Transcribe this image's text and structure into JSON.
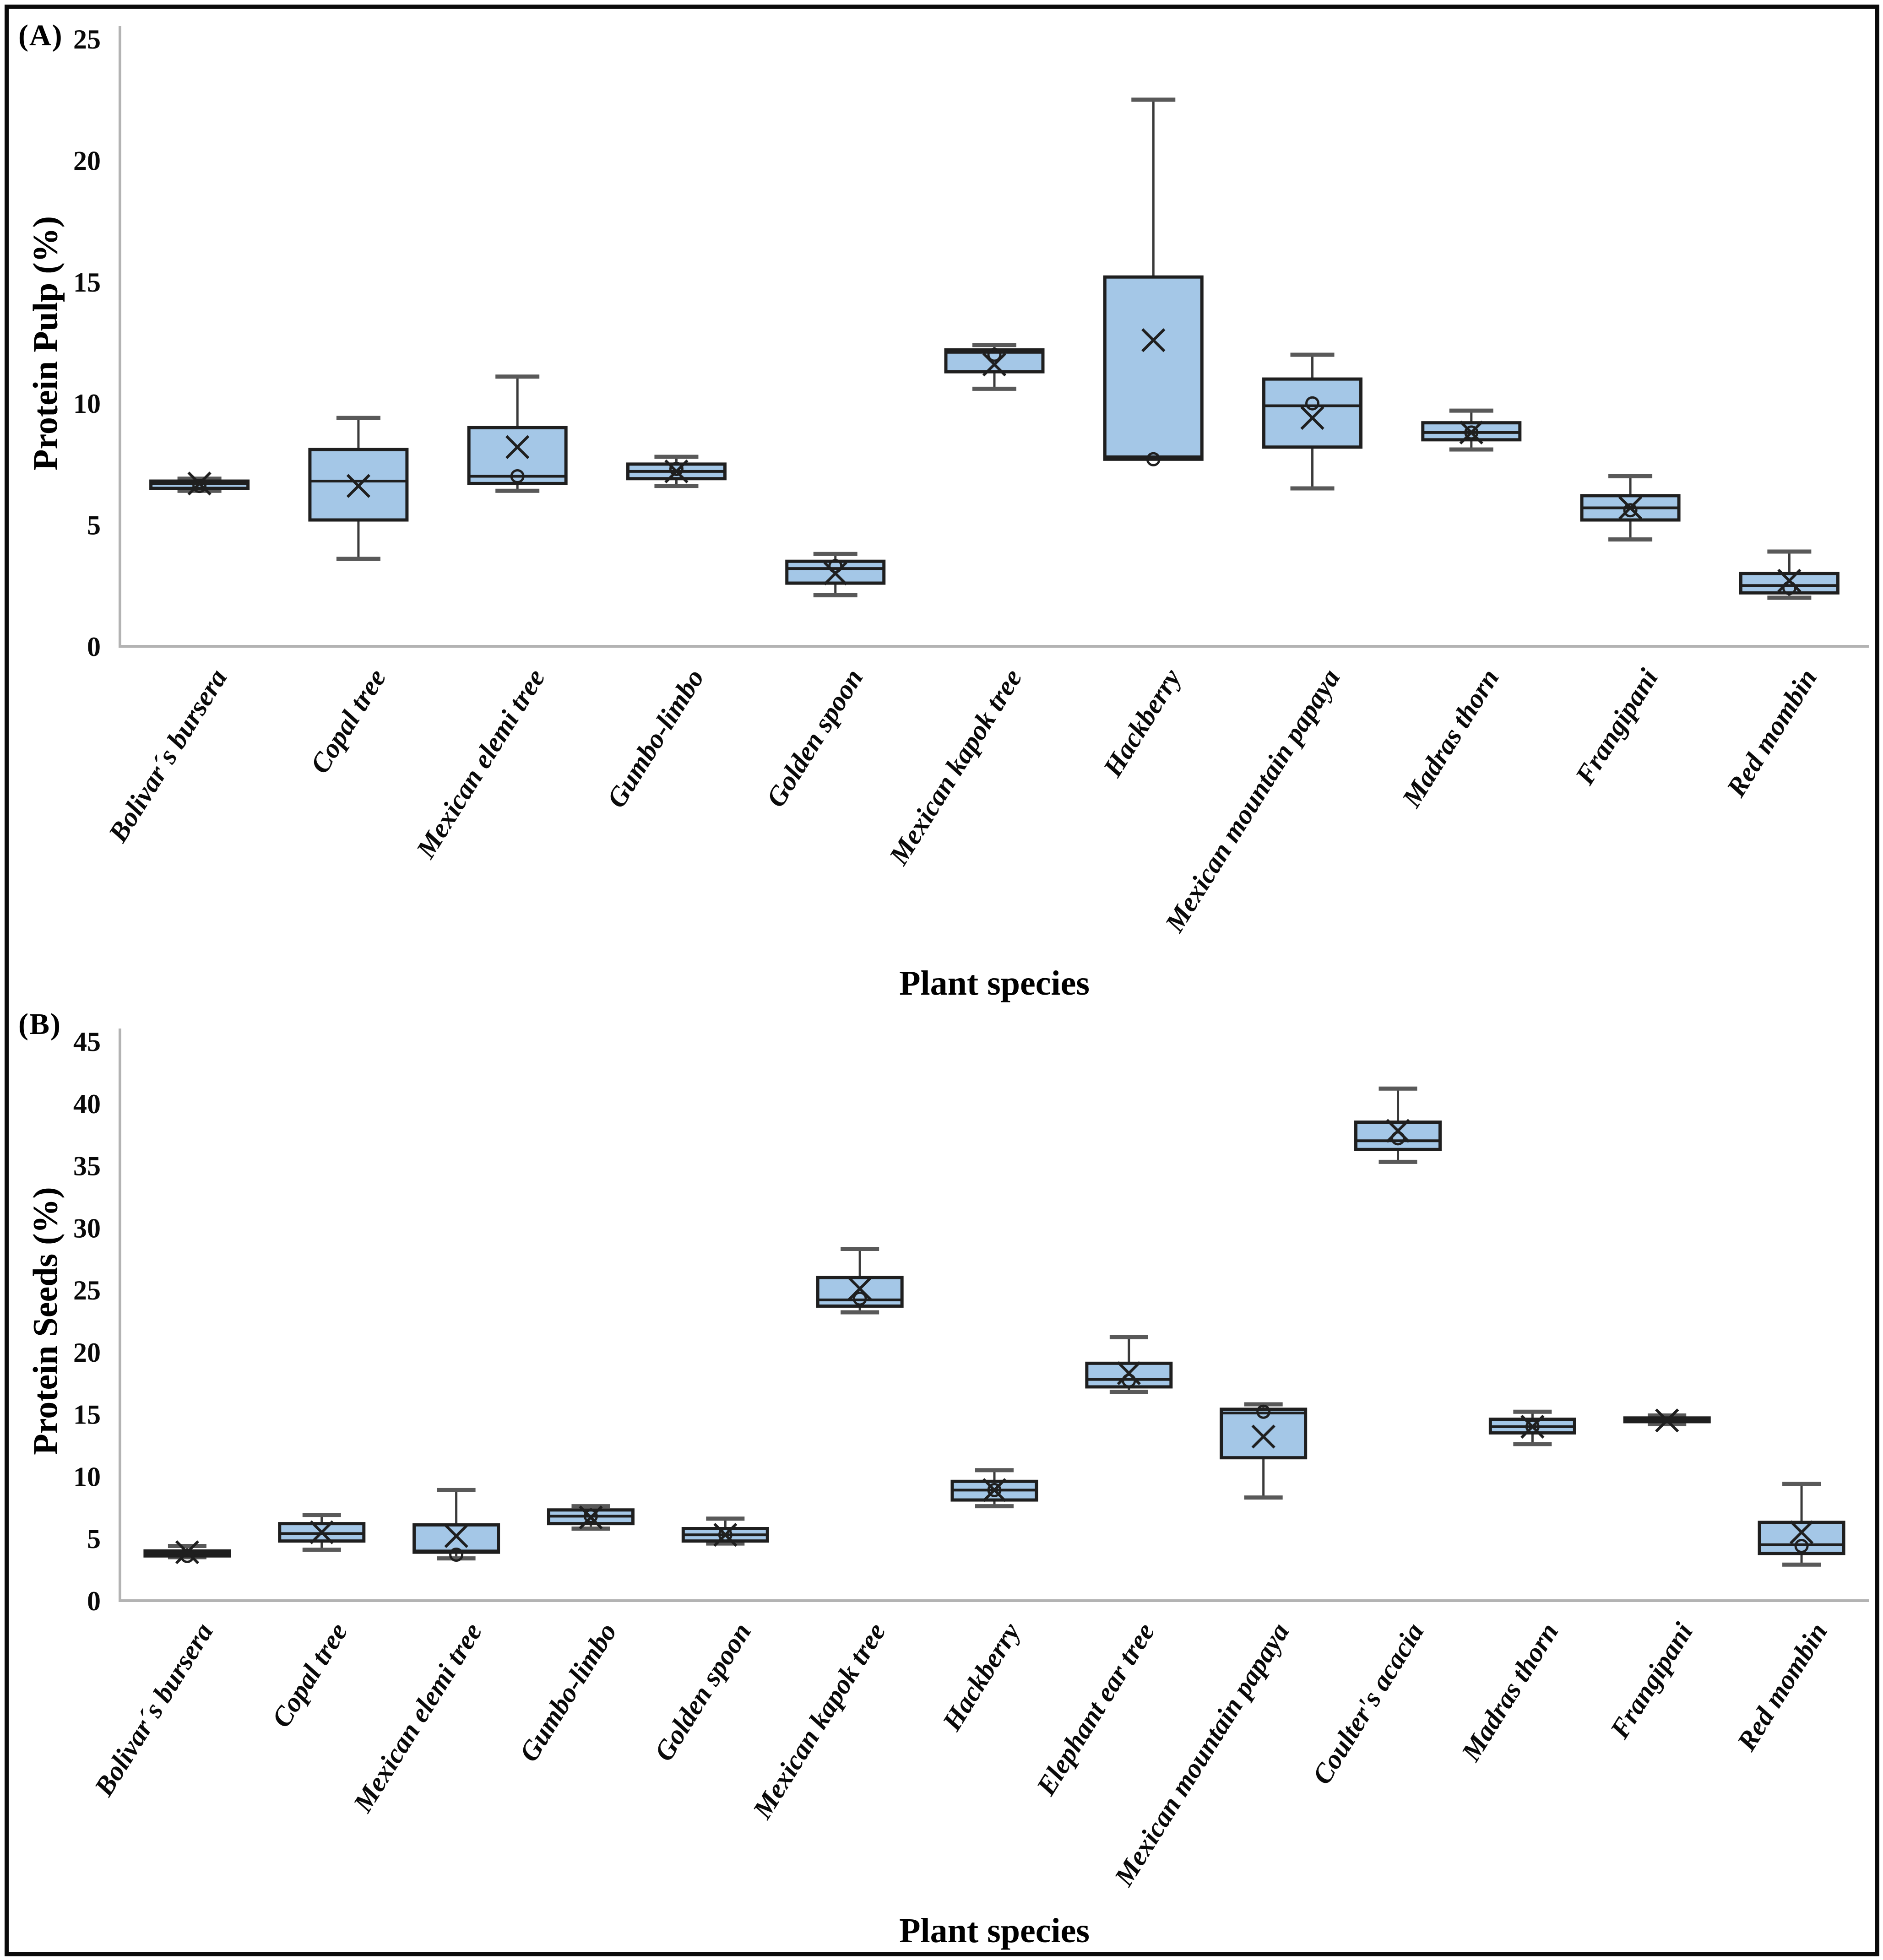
{
  "style": {
    "box_fill": "#a4c7e7",
    "box_stroke": "#1f1f1f",
    "whisker_color": "#3a3a3a",
    "cap_color": "#595959",
    "axis_color": "#b3b3b3",
    "text_color": "#0a0a0a"
  },
  "chart_data": [
    {
      "type": "box",
      "panel_label": "(A)",
      "xlabel": "Plant species",
      "ylabel": "Protein Pulp (%)",
      "ylim": [
        0,
        25
      ],
      "yticks": [
        0,
        5,
        10,
        15,
        20,
        25
      ],
      "grid": false,
      "legend": "none",
      "categories": [
        "Bolivar´s bursera",
        "Copal tree",
        "Mexican elemi tree",
        "Gumbo-limbo",
        "Golden spoon",
        "Mexican kapok tree",
        "Hackberry",
        "Mexican mountain papaya",
        "Madras thorn",
        "Frangipani",
        "Red mombin"
      ],
      "series": [
        {
          "name": "Protein Pulp",
          "boxes": [
            {
              "category": "Bolivar´s bursera",
              "low": 6.4,
              "q1": 6.5,
              "median": 6.7,
              "q3": 6.8,
              "high": 6.9,
              "mean": 6.7,
              "point": 6.6
            },
            {
              "category": "Copal tree",
              "low": 3.6,
              "q1": 5.2,
              "median": 6.8,
              "q3": 8.1,
              "high": 9.4,
              "mean": 6.6
            },
            {
              "category": "Mexican elemi tree",
              "low": 6.4,
              "q1": 6.7,
              "median": 7.0,
              "q3": 9.0,
              "high": 11.1,
              "mean": 8.2,
              "point": 7.0
            },
            {
              "category": "Gumbo-limbo",
              "low": 6.6,
              "q1": 6.9,
              "median": 7.2,
              "q3": 7.5,
              "high": 7.8,
              "mean": 7.2,
              "point": 7.3
            },
            {
              "category": "Golden spoon",
              "low": 2.1,
              "q1": 2.6,
              "median": 3.2,
              "q3": 3.5,
              "high": 3.8,
              "mean": 3.0,
              "point": 3.3
            },
            {
              "category": "Mexican kapok tree",
              "low": 10.6,
              "q1": 11.3,
              "median": 12.1,
              "q3": 12.2,
              "high": 12.4,
              "mean": 11.6,
              "point": 12.0
            },
            {
              "category": "Hackberry",
              "low": 7.7,
              "q1": 7.7,
              "median": 7.8,
              "q3": 15.2,
              "high": 22.5,
              "mean": 12.6,
              "point": 7.7
            },
            {
              "category": "Mexican mountain papaya",
              "low": 6.5,
              "q1": 8.2,
              "median": 9.9,
              "q3": 11.0,
              "high": 12.0,
              "mean": 9.4,
              "point": 10.0
            },
            {
              "category": "Madras thorn",
              "low": 8.1,
              "q1": 8.5,
              "median": 8.8,
              "q3": 9.2,
              "high": 9.7,
              "mean": 8.8,
              "point": 8.8
            },
            {
              "category": "Frangipani",
              "low": 4.4,
              "q1": 5.2,
              "median": 5.7,
              "q3": 6.2,
              "high": 7.0,
              "mean": 5.7,
              "point": 5.6
            },
            {
              "category": "Red mombin",
              "low": 2.0,
              "q1": 2.2,
              "median": 2.5,
              "q3": 3.0,
              "high": 3.9,
              "mean": 2.7,
              "point": 2.4
            }
          ]
        }
      ]
    },
    {
      "type": "box",
      "panel_label": "(B)",
      "xlabel": "Plant species",
      "ylabel": "Protein Seeds (%)",
      "ylim": [
        0,
        45
      ],
      "yticks": [
        0,
        5,
        10,
        15,
        20,
        25,
        30,
        35,
        40,
        45
      ],
      "grid": false,
      "legend": "none",
      "categories": [
        "Bolivar´s bursera",
        "Copal tree",
        "Mexican elemi tree",
        "Gumbo-limbo",
        "Golden spoon",
        "Mexican kapok tree",
        "Hackberry",
        "Elephant ear tree",
        "Mexican mountain papaya",
        "Coulter's acacia",
        "Madras thorn",
        "Frangipani",
        "Red mombin"
      ],
      "series": [
        {
          "name": "Protein Seeds",
          "boxes": [
            {
              "category": "Bolivar´s bursera",
              "low": 3.5,
              "q1": 3.6,
              "median": 3.8,
              "q3": 4.0,
              "high": 4.4,
              "mean": 3.9,
              "point": 3.6
            },
            {
              "category": "Copal tree",
              "low": 4.1,
              "q1": 4.8,
              "median": 5.4,
              "q3": 6.2,
              "high": 6.9,
              "mean": 5.5
            },
            {
              "category": "Mexican elemi tree",
              "low": 3.4,
              "q1": 3.9,
              "median": 4.0,
              "q3": 6.1,
              "high": 8.9,
              "mean": 5.2,
              "point": 3.7
            },
            {
              "category": "Gumbo-limbo",
              "low": 5.8,
              "q1": 6.2,
              "median": 6.8,
              "q3": 7.3,
              "high": 7.6,
              "mean": 6.7,
              "point": 6.8
            },
            {
              "category": "Golden spoon",
              "low": 4.6,
              "q1": 4.8,
              "median": 5.3,
              "q3": 5.8,
              "high": 6.6,
              "mean": 5.3,
              "point": 5.3
            },
            {
              "category": "Mexican kapok tree",
              "low": 23.2,
              "q1": 23.7,
              "median": 24.2,
              "q3": 26.0,
              "high": 28.3,
              "mean": 25.1,
              "point": 24.3
            },
            {
              "category": "Hackberry",
              "low": 7.6,
              "q1": 8.1,
              "median": 8.9,
              "q3": 9.6,
              "high": 10.5,
              "mean": 8.9,
              "point": 8.9
            },
            {
              "category": "Elephant ear tree",
              "low": 16.8,
              "q1": 17.2,
              "median": 17.8,
              "q3": 19.1,
              "high": 21.2,
              "mean": 18.3,
              "point": 17.7
            },
            {
              "category": "Mexican mountain papaya",
              "low": 8.3,
              "q1": 11.5,
              "median": 15.1,
              "q3": 15.4,
              "high": 15.8,
              "mean": 13.2,
              "point": 15.2
            },
            {
              "category": "Coulter's acacia",
              "low": 35.3,
              "q1": 36.3,
              "median": 37.0,
              "q3": 38.5,
              "high": 41.2,
              "mean": 37.8,
              "point": 37.2
            },
            {
              "category": "Madras thorn",
              "low": 12.6,
              "q1": 13.5,
              "median": 14.0,
              "q3": 14.6,
              "high": 15.2,
              "mean": 14.0,
              "point": 14.0
            },
            {
              "category": "Frangipani",
              "low": 14.2,
              "q1": 14.4,
              "median": 14.5,
              "q3": 14.7,
              "high": 14.9,
              "mean": 14.5
            },
            {
              "category": "Red mombin",
              "low": 2.9,
              "q1": 3.8,
              "median": 4.5,
              "q3": 6.3,
              "high": 9.4,
              "mean": 5.5,
              "point": 4.4
            }
          ]
        }
      ]
    }
  ]
}
